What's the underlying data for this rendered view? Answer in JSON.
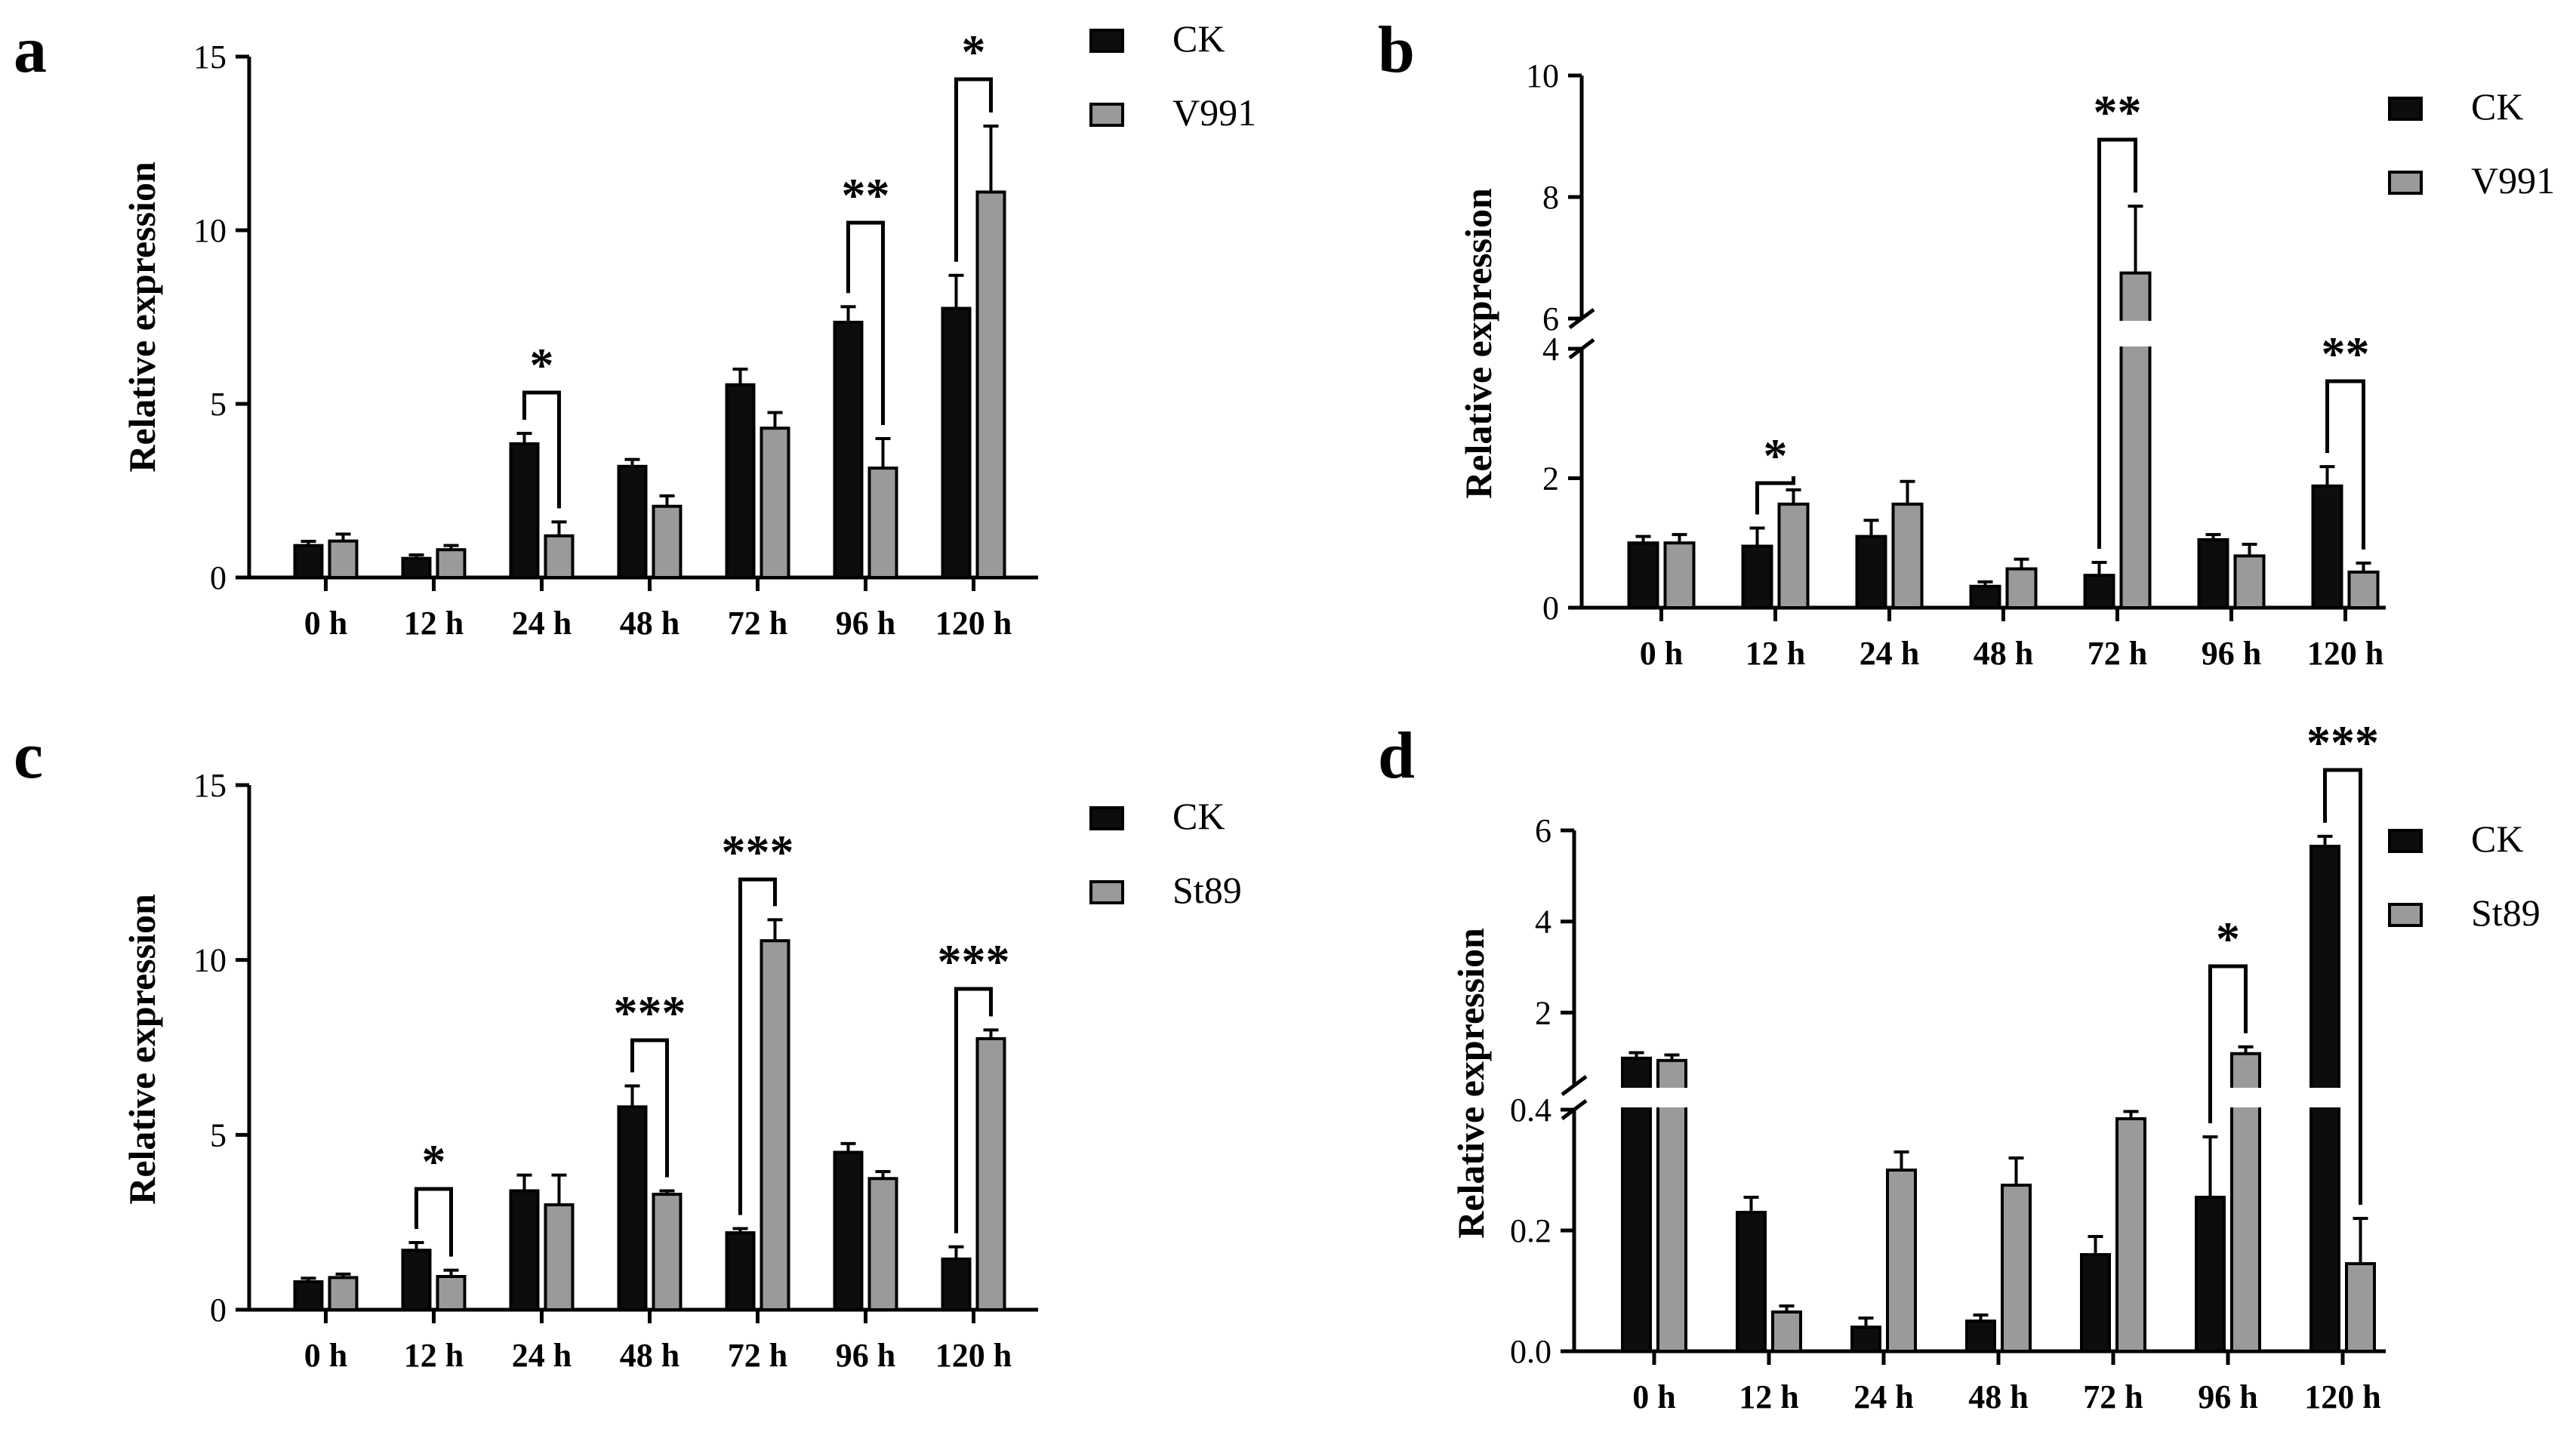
{
  "figure": {
    "bar_colors": {
      "CK": "#0d0d0d",
      "V991": "#9a9a9a",
      "St89": "#9a9a9a"
    }
  },
  "chart_data": [
    {
      "panel": "a",
      "type": "bar",
      "ylabel": "Relative expression",
      "categories": [
        "0 h",
        "12 h",
        "24 h",
        "48 h",
        "72 h",
        "96 h",
        "120 h"
      ],
      "ylim": [
        0,
        15
      ],
      "yticks": [
        0,
        5,
        10,
        15
      ],
      "series": [
        {
          "name": "CK",
          "values": [
            0.92,
            0.55,
            3.85,
            3.2,
            5.55,
            7.35,
            7.75
          ],
          "errors": [
            0.12,
            0.1,
            0.3,
            0.2,
            0.45,
            0.45,
            0.95
          ]
        },
        {
          "name": "V991",
          "values": [
            1.05,
            0.8,
            1.2,
            2.05,
            4.3,
            3.15,
            11.1
          ],
          "errors": [
            0.2,
            0.12,
            0.4,
            0.3,
            0.45,
            0.85,
            1.9
          ]
        }
      ],
      "significance": [
        {
          "category": "24 h",
          "label": "*"
        },
        {
          "category": "96 h",
          "label": "**"
        },
        {
          "category": "120 h",
          "label": "*"
        }
      ]
    },
    {
      "panel": "b",
      "type": "bar",
      "ylabel": "Relative expression",
      "categories": [
        "0 h",
        "12 h",
        "24 h",
        "48 h",
        "72 h",
        "96 h",
        "120 h"
      ],
      "axis_break": {
        "lower": [
          0,
          4
        ],
        "upper": [
          6,
          10
        ]
      },
      "yticks": [
        0,
        2,
        4,
        6,
        8,
        10
      ],
      "series": [
        {
          "name": "CK",
          "values": [
            1.0,
            0.95,
            1.1,
            0.33,
            0.5,
            1.05,
            1.88
          ],
          "errors": [
            0.1,
            0.28,
            0.25,
            0.07,
            0.2,
            0.08,
            0.3
          ]
        },
        {
          "name": "V991",
          "values": [
            1.0,
            1.6,
            1.6,
            0.6,
            6.75,
            0.8,
            0.55
          ],
          "errors": [
            0.13,
            0.22,
            0.35,
            0.15,
            1.1,
            0.18,
            0.14
          ]
        }
      ],
      "significance": [
        {
          "category": "12 h",
          "label": "*"
        },
        {
          "category": "72 h",
          "label": "**"
        },
        {
          "category": "120 h",
          "label": "**"
        }
      ]
    },
    {
      "panel": "c",
      "type": "bar",
      "ylabel": "Relative expression",
      "categories": [
        "0 h",
        "12 h",
        "24 h",
        "48 h",
        "72 h",
        "96 h",
        "120 h"
      ],
      "ylim": [
        0,
        15
      ],
      "yticks": [
        0,
        5,
        10,
        15
      ],
      "series": [
        {
          "name": "CK",
          "values": [
            0.8,
            1.7,
            3.4,
            5.8,
            2.2,
            4.5,
            1.45
          ],
          "errors": [
            0.1,
            0.22,
            0.45,
            0.6,
            0.12,
            0.25,
            0.35
          ]
        },
        {
          "name": "St89",
          "values": [
            0.92,
            0.95,
            3.0,
            3.3,
            10.55,
            3.75,
            7.75
          ],
          "errors": [
            0.1,
            0.18,
            0.85,
            0.1,
            0.6,
            0.2,
            0.25
          ]
        }
      ],
      "significance": [
        {
          "category": "12 h",
          "label": "*"
        },
        {
          "category": "48 h",
          "label": "***"
        },
        {
          "category": "72 h",
          "label": "***"
        },
        {
          "category": "120 h",
          "label": "***"
        }
      ]
    },
    {
      "panel": "d",
      "type": "bar",
      "ylabel": "Relative expression",
      "categories": [
        "0 h",
        "12 h",
        "24 h",
        "48 h",
        "72 h",
        "96 h",
        "120 h"
      ],
      "axis_break": {
        "lower": [
          0,
          0.4
        ],
        "upper": [
          0.4,
          6
        ]
      },
      "yticks": [
        0.0,
        0.2,
        0.4,
        2,
        4,
        6
      ],
      "series": [
        {
          "name": "CK",
          "values": [
            1.0,
            0.23,
            0.04,
            0.05,
            0.16,
            0.255,
            5.65
          ],
          "errors": [
            0.12,
            0.025,
            0.015,
            0.01,
            0.03,
            0.1,
            0.22
          ]
        },
        {
          "name": "St89",
          "values": [
            0.95,
            0.065,
            0.3,
            0.275,
            0.385,
            1.1,
            0.145
          ],
          "errors": [
            0.12,
            0.01,
            0.03,
            0.045,
            0.012,
            0.15,
            0.075
          ]
        }
      ],
      "significance": [
        {
          "category": "96 h",
          "label": "*"
        },
        {
          "category": "120 h",
          "label": "***"
        }
      ]
    }
  ]
}
